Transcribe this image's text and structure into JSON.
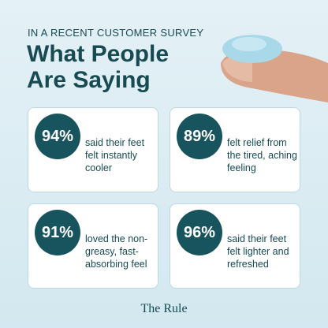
{
  "header": {
    "kicker": "IN A RECENT CUSTOMER SURVEY",
    "title_lines": [
      "What People",
      "Are Saying"
    ]
  },
  "stats": [
    {
      "value": "94%",
      "text": "said their feet felt instantly cooler"
    },
    {
      "value": "89%",
      "text": "felt relief from the tired, aching feeling"
    },
    {
      "value": "91%",
      "text": "loved the non-greasy, fast-absorbing feel"
    },
    {
      "value": "96%",
      "text": "said their feet felt lighter and refreshed"
    }
  ],
  "footer": {
    "brand": "The Rule"
  }
}
